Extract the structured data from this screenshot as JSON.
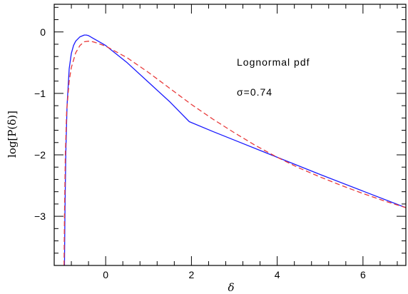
{
  "chart_data": {
    "type": "line",
    "xlabel": "δ",
    "ylabel": "log[P(δ)]",
    "xlim": [
      -1.2,
      7.0
    ],
    "ylim": [
      -3.8,
      0.45
    ],
    "x_ticks": [
      0,
      2,
      4,
      6
    ],
    "x_tick_labels": [
      "0",
      "2",
      "4",
      "6"
    ],
    "y_ticks": [
      0,
      -1,
      -2,
      -3
    ],
    "y_tick_labels": [
      "0",
      "−1",
      "−2",
      "−3"
    ],
    "x_minor_step": 0.4,
    "y_minor_step": 0.2,
    "grid": false,
    "annotations": {
      "title": "Lognormal pdf",
      "sigma": "σ=0.74"
    },
    "series": [
      {
        "color": "#1a1aff",
        "dash": "solid",
        "points": [
          [
            -0.96,
            -3.8
          ],
          [
            -0.95,
            -3.0
          ],
          [
            -0.93,
            -2.0
          ],
          [
            -0.9,
            -1.2
          ],
          [
            -0.85,
            -0.6
          ],
          [
            -0.8,
            -0.35
          ],
          [
            -0.75,
            -0.22
          ],
          [
            -0.7,
            -0.15
          ],
          [
            -0.6,
            -0.08
          ],
          [
            -0.5,
            -0.05
          ],
          [
            -0.45,
            -0.05
          ],
          [
            -0.4,
            -0.06
          ],
          [
            -0.3,
            -0.1
          ],
          [
            -0.2,
            -0.14
          ],
          [
            0.0,
            -0.22
          ],
          [
            0.5,
            -0.5
          ],
          [
            1.0,
            -0.82
          ],
          [
            1.5,
            -1.14
          ],
          [
            1.95,
            -1.46
          ],
          [
            2.5,
            -1.62
          ],
          [
            3.0,
            -1.76
          ],
          [
            4.0,
            -2.04
          ],
          [
            5.0,
            -2.32
          ],
          [
            6.0,
            -2.59
          ],
          [
            7.0,
            -2.86
          ]
        ]
      },
      {
        "color": "#e83a3a",
        "dash": "dashed",
        "points": [
          [
            -0.97,
            -3.8
          ],
          [
            -0.96,
            -3.0
          ],
          [
            -0.94,
            -2.0
          ],
          [
            -0.91,
            -1.3
          ],
          [
            -0.85,
            -0.8
          ],
          [
            -0.8,
            -0.58
          ],
          [
            -0.7,
            -0.34
          ],
          [
            -0.6,
            -0.22
          ],
          [
            -0.5,
            -0.16
          ],
          [
            -0.4,
            -0.15
          ],
          [
            -0.3,
            -0.16
          ],
          [
            -0.2,
            -0.18
          ],
          [
            0.0,
            -0.23
          ],
          [
            0.5,
            -0.42
          ],
          [
            1.0,
            -0.66
          ],
          [
            1.5,
            -0.92
          ],
          [
            2.0,
            -1.18
          ],
          [
            2.5,
            -1.42
          ],
          [
            3.0,
            -1.64
          ],
          [
            3.5,
            -1.85
          ],
          [
            4.0,
            -2.04
          ],
          [
            4.5,
            -2.21
          ],
          [
            5.0,
            -2.36
          ],
          [
            5.5,
            -2.5
          ],
          [
            6.0,
            -2.63
          ],
          [
            6.5,
            -2.75
          ],
          [
            7.0,
            -2.86
          ]
        ]
      }
    ]
  }
}
